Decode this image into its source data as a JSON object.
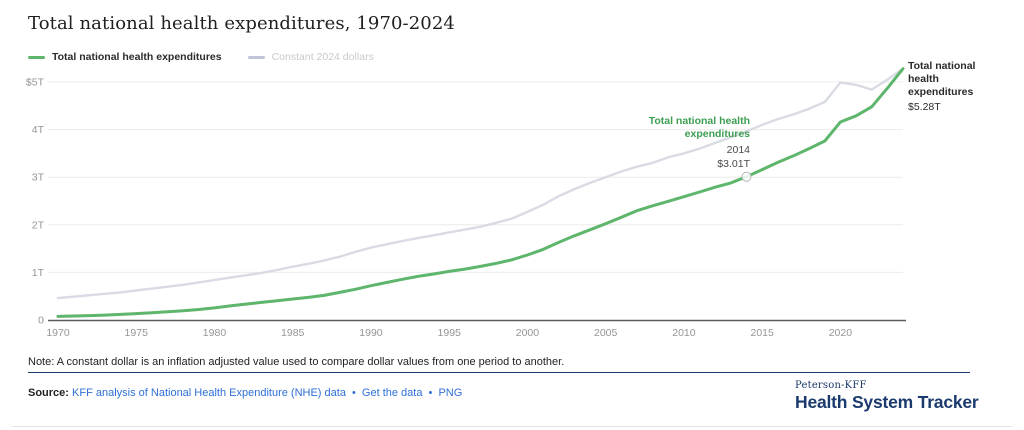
{
  "header": {
    "title": "Total national health expenditures, 1970-2024"
  },
  "legend": {
    "items": [
      {
        "label": "Total national health expenditures",
        "color": "#5eb56c"
      },
      {
        "label": "Constant 2024 dollars",
        "color": "#bfc5d6"
      }
    ]
  },
  "chart_data": {
    "type": "line",
    "title": "Total national health expenditures, 1970-2024",
    "xlabel": "",
    "ylabel": "",
    "grid": "horizontal",
    "legend_position": "top-left",
    "ylim": [
      0,
      5.4
    ],
    "xlim": [
      1970,
      2024
    ],
    "ytick_values": [
      0,
      1,
      2,
      3,
      4,
      5
    ],
    "ytick_labels": [
      "0",
      "1T",
      "2T",
      "3T",
      "4T",
      "$5T"
    ],
    "xtick_values": [
      1970,
      1975,
      1980,
      1985,
      1990,
      1995,
      2000,
      2005,
      2010,
      2015,
      2020
    ],
    "x": [
      1970,
      1971,
      1972,
      1973,
      1974,
      1975,
      1976,
      1977,
      1978,
      1979,
      1980,
      1981,
      1982,
      1983,
      1984,
      1985,
      1986,
      1987,
      1988,
      1989,
      1990,
      1991,
      1992,
      1993,
      1994,
      1995,
      1996,
      1997,
      1998,
      1999,
      2000,
      2001,
      2002,
      2003,
      2004,
      2005,
      2006,
      2007,
      2008,
      2009,
      2010,
      2011,
      2012,
      2013,
      2014,
      2015,
      2016,
      2017,
      2018,
      2019,
      2020,
      2021,
      2022,
      2023,
      2024
    ],
    "series": [
      {
        "name": "Total national health expenditures",
        "color": "#5eb56c",
        "values": [
          0.075,
          0.083,
          0.093,
          0.103,
          0.117,
          0.134,
          0.153,
          0.174,
          0.195,
          0.221,
          0.255,
          0.297,
          0.334,
          0.369,
          0.405,
          0.442,
          0.474,
          0.516,
          0.579,
          0.644,
          0.721,
          0.788,
          0.854,
          0.916,
          0.967,
          1.022,
          1.07,
          1.125,
          1.19,
          1.265,
          1.366,
          1.483,
          1.63,
          1.768,
          1.896,
          2.024,
          2.157,
          2.296,
          2.4,
          2.494,
          2.59,
          2.69,
          2.79,
          2.88,
          3.01,
          3.16,
          3.31,
          3.45,
          3.6,
          3.76,
          4.16,
          4.29,
          4.48,
          4.87,
          5.28
        ]
      },
      {
        "name": "Constant 2024 dollars",
        "color": "#d9dbe4",
        "values": [
          0.46,
          0.49,
          0.52,
          0.55,
          0.58,
          0.62,
          0.66,
          0.7,
          0.74,
          0.79,
          0.84,
          0.89,
          0.94,
          0.99,
          1.05,
          1.12,
          1.18,
          1.25,
          1.33,
          1.43,
          1.52,
          1.59,
          1.66,
          1.72,
          1.78,
          1.84,
          1.9,
          1.96,
          2.04,
          2.13,
          2.27,
          2.42,
          2.6,
          2.75,
          2.88,
          3.0,
          3.12,
          3.22,
          3.3,
          3.42,
          3.5,
          3.6,
          3.72,
          3.84,
          3.96,
          4.1,
          4.22,
          4.32,
          4.44,
          4.58,
          4.99,
          4.94,
          4.84,
          5.05,
          5.28
        ]
      }
    ],
    "marker_point": {
      "x": 2014,
      "y": 3.01
    }
  },
  "tooltip": {
    "series_label": "Total national health expenditures",
    "year": "2014",
    "value": "$3.01T"
  },
  "end_label": {
    "label": "Total national health expenditures",
    "value": "$5.28T"
  },
  "footer": {
    "note": "Note: A constant dollar is an inflation adjusted value used to compare dollar values from one period to another.",
    "source_prefix": "Source:",
    "source_link": "KFF analysis of National Health Expenditure (NHE) data",
    "separator": "•",
    "get_data_link": "Get the data",
    "png_link": "PNG"
  },
  "branding": {
    "brand_top": "Peterson-KFF",
    "brand_bottom": "Health System Tracker"
  },
  "colors": {
    "green_line": "#5eb56c",
    "green_text": "#3d9e52",
    "gray_line": "#d9dbe4",
    "legend_gray_swatch": "#bfc5d6",
    "legend_gray_text": "#c9c9c9",
    "gridline": "#ececec",
    "axis_line": "#5a5a5a",
    "tick_label": "#959595",
    "navy": "#1b3a6d",
    "link_blue": "#2e6fd8",
    "marker_stroke": "#b8b8b8"
  }
}
